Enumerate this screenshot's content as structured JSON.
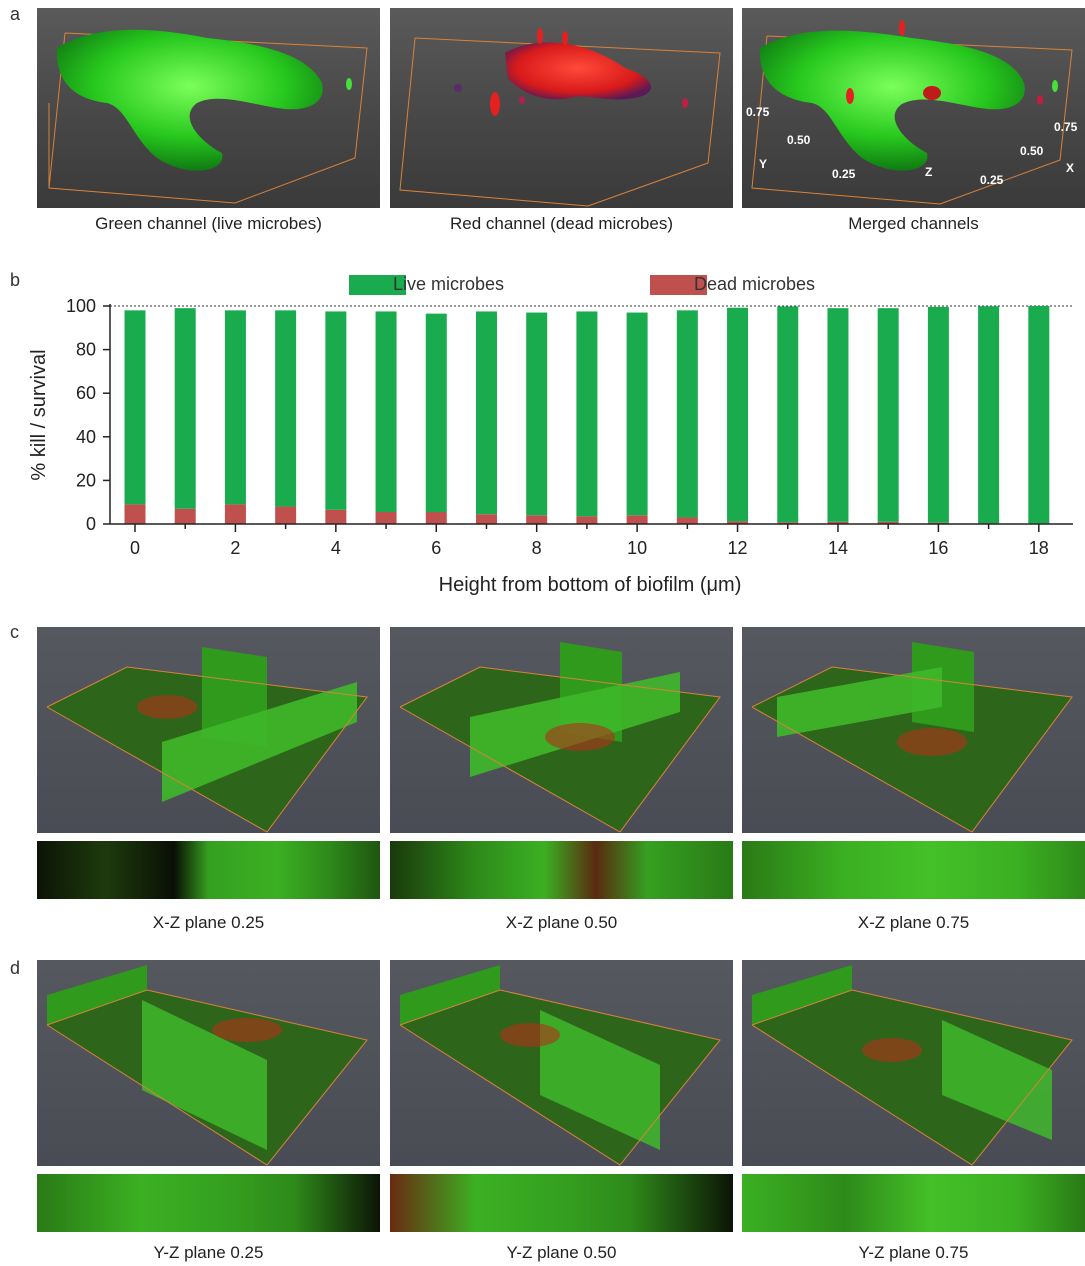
{
  "panel_a": {
    "label": "a",
    "captions": [
      "Green channel (live microbes)",
      "Red channel (dead microbes)",
      "Merged channels"
    ],
    "axis_labels": {
      "y_axis": "Y",
      "x_axis": "X",
      "z_axis": "Z",
      "y_ticks": [
        "0.75",
        "0.50",
        "0.25"
      ],
      "x_ticks": [
        "0.75",
        "0.50",
        "0.25"
      ]
    }
  },
  "panel_b": {
    "label": "b"
  },
  "panel_c": {
    "label": "c",
    "captions": [
      "X-Z plane 0.25",
      "X-Z plane 0.50",
      "X-Z plane 0.75"
    ]
  },
  "panel_d": {
    "label": "d",
    "captions": [
      "Y-Z plane 0.25",
      "Y-Z plane 0.50",
      "Y-Z plane 0.75"
    ]
  },
  "colors": {
    "live": "#1aab4f",
    "dead": "#c0504d",
    "bbox": "#d9823a"
  },
  "chart_data": {
    "type": "bar",
    "stacked": true,
    "xlabel": "Height from bottom of biofilm (μm)",
    "ylabel": "% kill / survival",
    "ylim": [
      0,
      100
    ],
    "yticks": [
      "0",
      "20",
      "40",
      "60",
      "80",
      "100"
    ],
    "xticks": [
      "0",
      "2",
      "4",
      "6",
      "8",
      "10",
      "12",
      "14",
      "16",
      "18"
    ],
    "reference_line": 100,
    "legend_position": "top",
    "categories": [
      0,
      1,
      2,
      3,
      4,
      5,
      6,
      7,
      8,
      9,
      10,
      11,
      12,
      13,
      14,
      15,
      16,
      17,
      18
    ],
    "series": [
      {
        "name": "Live microbes",
        "values": [
          89,
          92,
          89,
          90,
          91,
          92,
          91,
          93,
          93,
          94,
          93,
          95,
          98,
          99,
          98,
          98,
          99,
          99.5,
          99.7
        ]
      },
      {
        "name": "Dead microbes",
        "values": [
          9,
          7,
          9,
          8,
          6.5,
          5.5,
          5.5,
          4.5,
          4,
          3.5,
          4,
          3,
          1.2,
          0.8,
          1,
          1,
          0.6,
          0.4,
          0.3
        ]
      }
    ]
  }
}
